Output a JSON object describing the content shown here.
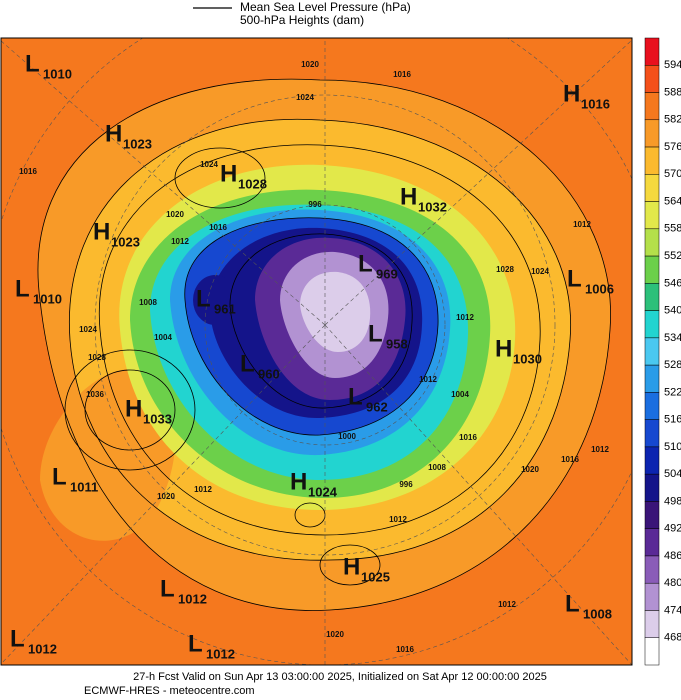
{
  "header": {
    "legend": [
      "Mean Sea Level Pressure (hPa)",
      "500-hPa Heights (dam)"
    ]
  },
  "colorbar": {
    "ticks": [
      "594",
      "588",
      "582",
      "576",
      "570",
      "564",
      "558",
      "552",
      "546",
      "540",
      "534",
      "528",
      "522",
      "516",
      "510",
      "504",
      "498",
      "492",
      "486",
      "480",
      "474",
      "468"
    ],
    "colors": [
      "#e8101e",
      "#f4501a",
      "#f5781e",
      "#f89a28",
      "#fbba2e",
      "#f5d93e",
      "#e2e84a",
      "#b4e04a",
      "#6cd04a",
      "#2cc07a",
      "#22d4d0",
      "#4ac8f0",
      "#2a9ce8",
      "#1a6ee0",
      "#1648d0",
      "#0c24b0",
      "#14148a",
      "#3a1478",
      "#5a2a96",
      "#8a5cb8",
      "#b292d2",
      "#dccdea",
      "#ffffff"
    ]
  },
  "centers": [
    {
      "type": "L",
      "value": "1010"
    },
    {
      "type": "H",
      "value": "1023"
    },
    {
      "type": "H",
      "value": "1016"
    },
    {
      "type": "H",
      "value": "1028"
    },
    {
      "type": "H",
      "value": "1032"
    },
    {
      "type": "H",
      "value": "1023"
    },
    {
      "type": "L",
      "value": "1010"
    },
    {
      "type": "L",
      "value": "969"
    },
    {
      "type": "L",
      "value": "1006"
    },
    {
      "type": "L",
      "value": "961"
    },
    {
      "type": "L",
      "value": "958"
    },
    {
      "type": "H",
      "value": "1030"
    },
    {
      "type": "L",
      "value": "960"
    },
    {
      "type": "L",
      "value": "962"
    },
    {
      "type": "H",
      "value": "1033"
    },
    {
      "type": "H",
      "value": "1024"
    },
    {
      "type": "L",
      "value": "1011"
    },
    {
      "type": "H",
      "value": "1025"
    },
    {
      "type": "L",
      "value": "1012"
    },
    {
      "type": "L",
      "value": "1008"
    },
    {
      "type": "L",
      "value": "1012"
    },
    {
      "type": "L",
      "value": "1012"
    }
  ],
  "contour_labels": [
    "1020",
    "1024",
    "1016",
    "1016",
    "1024",
    "1020",
    "1016",
    "1012",
    "996",
    "1028",
    "1024",
    "1012",
    "1012",
    "1024",
    "1028",
    "1036",
    "1008",
    "1004",
    "1000",
    "996",
    "1008",
    "1016",
    "1020",
    "1016",
    "1012",
    "1012",
    "1020",
    "1012",
    "1012",
    "1020",
    "1016",
    "1004",
    "1012"
  ],
  "footer": [
    "27-h Fcst Valid on Sun Apr 13 03:00:00 2025, Initialized on Sat Apr 12 00:00:00 2025",
    "ECMWF-HRES - meteocentre.com"
  ]
}
